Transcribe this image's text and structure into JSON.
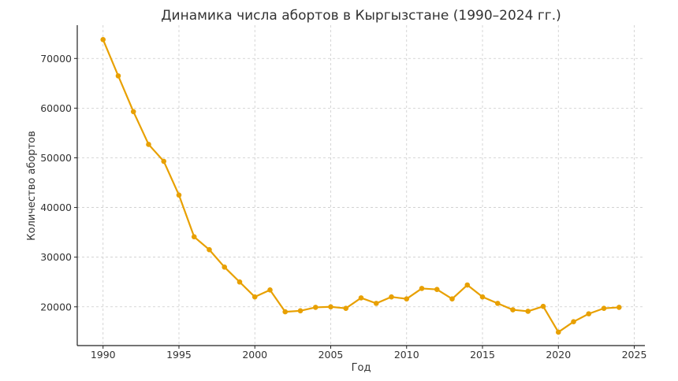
{
  "chart_data": {
    "type": "line",
    "title": "Динамика числа абортов в Кыргызстане (1990–2024 гг.)",
    "xlabel": "Год",
    "ylabel": "Количество абортов",
    "xlim": [
      1988.3,
      2025.7
    ],
    "ylim": [
      12200,
      76700
    ],
    "xticks": [
      1990,
      1995,
      2000,
      2005,
      2010,
      2015,
      2020,
      2025
    ],
    "yticks": [
      20000,
      30000,
      40000,
      50000,
      60000,
      70000
    ],
    "grid": true,
    "series": [
      {
        "color": "#E8A000",
        "x": [
          1990,
          1991,
          1992,
          1993,
          1994,
          1995,
          1996,
          1997,
          1998,
          1999,
          2000,
          2001,
          2002,
          2003,
          2004,
          2005,
          2006,
          2007,
          2008,
          2009,
          2010,
          2011,
          2012,
          2013,
          2014,
          2015,
          2016,
          2017,
          2018,
          2019,
          2020,
          2021,
          2022,
          2023,
          2024
        ],
        "y": [
          73800,
          66500,
          59300,
          52700,
          49300,
          42500,
          34100,
          31500,
          28000,
          25000,
          22000,
          23400,
          19000,
          19200,
          19900,
          20000,
          19700,
          21800,
          20700,
          22000,
          21600,
          23700,
          23500,
          21600,
          24400,
          22000,
          20700,
          19400,
          19100,
          20100,
          14900,
          17000,
          18600,
          19700,
          19900
        ]
      }
    ]
  }
}
